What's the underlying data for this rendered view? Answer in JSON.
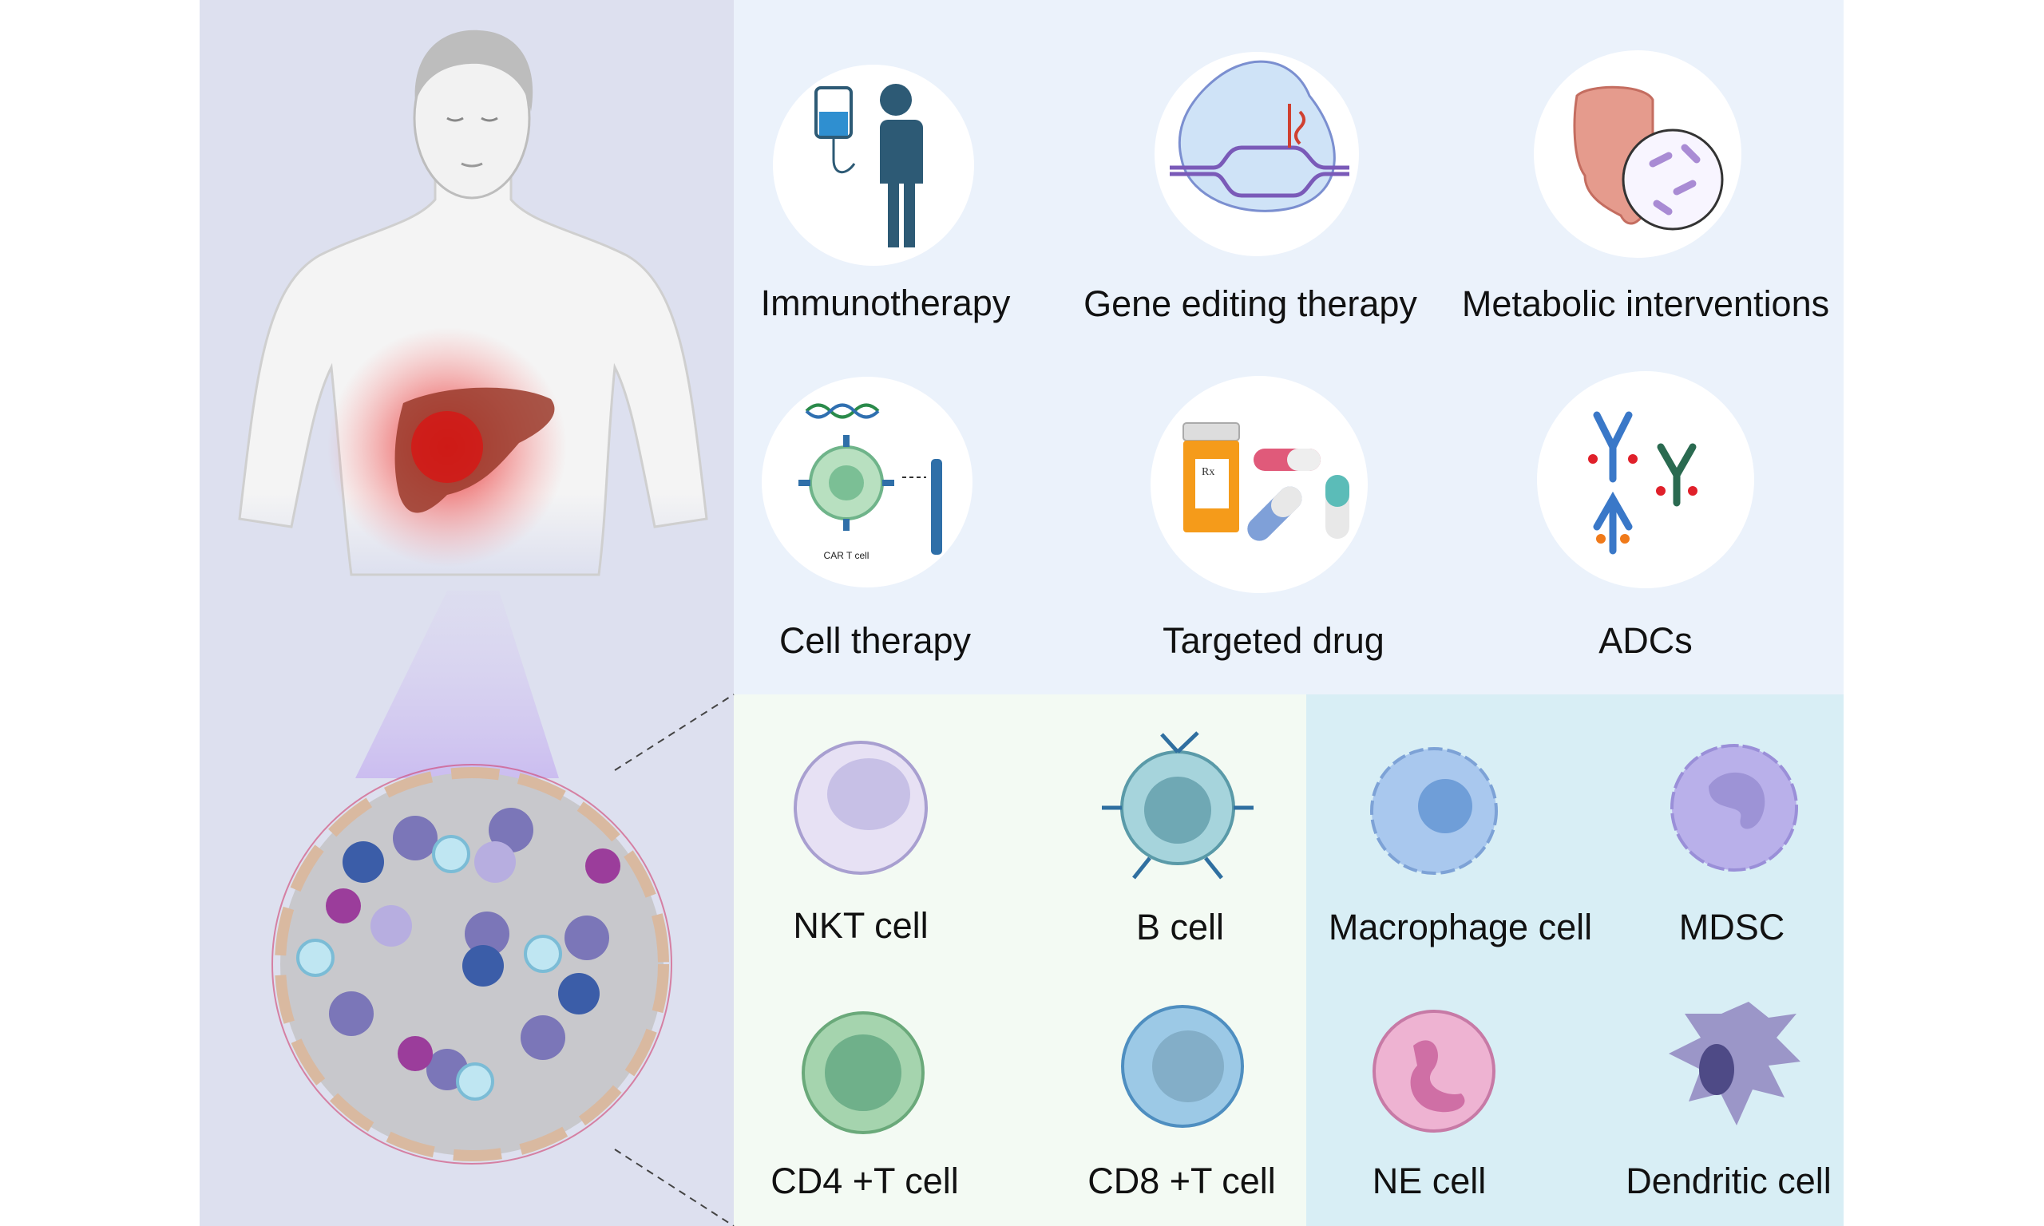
{
  "therapies": [
    {
      "label": "Immunotherapy",
      "icon": "iv-drip-patient-icon"
    },
    {
      "label": "Gene editing therapy",
      "icon": "crispr-dna-icon"
    },
    {
      "label": "Metabolic interventions",
      "icon": "intestine-microbiome-icon"
    },
    {
      "label": "Cell therapy",
      "icon": "car-t-cell-icon",
      "inner_label": "CAR T cell"
    },
    {
      "label": "Targeted drug",
      "icon": "pill-bottle-capsules-icon",
      "inner_label": "Rx"
    },
    {
      "label": "ADCs",
      "icon": "antibody-drug-conjugate-icon"
    }
  ],
  "cells": [
    {
      "label": "NKT cell",
      "color": "#c9c3e6"
    },
    {
      "label": "B cell",
      "color": "#9fcfd8"
    },
    {
      "label": "Macrophage cell",
      "color": "#a9c8ee"
    },
    {
      "label": "MDSC",
      "color": "#b7aee8"
    },
    {
      "label": "CD4 +T cell",
      "color": "#a5d4ae"
    },
    {
      "label": "CD8 +T cell",
      "color": "#9cc9e6"
    },
    {
      "label": "NE cell",
      "color": "#eeb3d2"
    },
    {
      "label": "Dendritic cell",
      "color": "#9b96c8"
    }
  ],
  "colors": {
    "left_panel": "#dde0ef",
    "therapy_panel": "#ebf2fb",
    "lymphoid_panel": "#f3faf3",
    "myeloid_panel": "#d8eef5"
  }
}
